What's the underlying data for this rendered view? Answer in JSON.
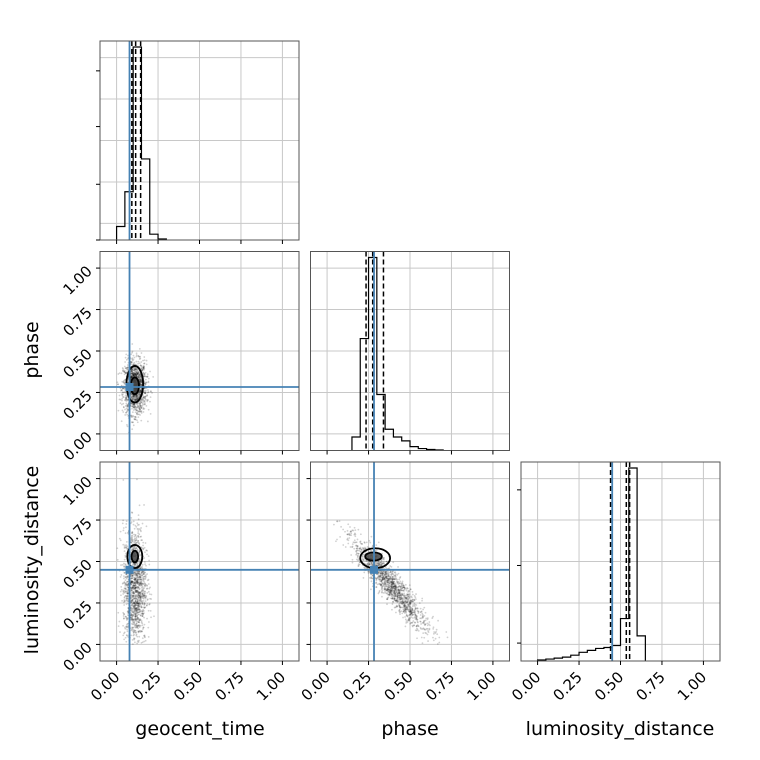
{
  "chart_data": {
    "type": "corner",
    "parameters": [
      "geocent_time",
      "phase",
      "luminosity_distance"
    ],
    "axis_range": [
      -0.1,
      1.1
    ],
    "tick_values": [
      0.0,
      0.25,
      0.5,
      0.75,
      1.0
    ],
    "tick_labels": [
      "0.00",
      "0.25",
      "0.50",
      "0.75",
      "1.00"
    ],
    "xlabels": [
      "geocent_time",
      "phase",
      "luminosity_distance"
    ],
    "ylabels": [
      "",
      "phase",
      "luminosity_distance"
    ],
    "grid": true,
    "truth_color": "#4682b4",
    "truths": {
      "geocent_time": 0.078,
      "phase": 0.283,
      "luminosity_distance": 0.45
    },
    "histograms": [
      {
        "parameter": "geocent_time",
        "bin_edges": [
          0.0,
          0.05,
          0.1,
          0.15,
          0.2,
          0.25,
          0.3
        ],
        "counts": [
          0.07,
          0.25,
          1.0,
          0.42,
          0.03,
          0.005
        ],
        "quantiles": [
          0.092,
          0.115,
          0.145
        ]
      },
      {
        "parameter": "phase",
        "bin_edges": [
          0.15,
          0.2,
          0.25,
          0.3,
          0.35,
          0.4,
          0.45,
          0.5,
          0.55,
          0.6,
          0.65,
          0.7
        ],
        "counts": [
          0.07,
          0.58,
          1.0,
          0.29,
          0.11,
          0.07,
          0.05,
          0.02,
          0.01,
          0.005,
          0.003
        ],
        "quantiles": [
          0.235,
          0.275,
          0.34
        ]
      },
      {
        "parameter": "luminosity_distance",
        "bin_edges": [
          0.0,
          0.05,
          0.1,
          0.15,
          0.2,
          0.25,
          0.3,
          0.35,
          0.4,
          0.45,
          0.5,
          0.55,
          0.6,
          0.65
        ],
        "counts": [
          0.005,
          0.01,
          0.015,
          0.02,
          0.03,
          0.045,
          0.055,
          0.065,
          0.07,
          0.08,
          0.22,
          1.0,
          0.13
        ],
        "quantiles": [
          0.44,
          0.535,
          0.555
        ]
      }
    ],
    "scatter_panels": [
      {
        "x": "geocent_time",
        "y": "phase",
        "cloud_center": [
          0.11,
          0.28
        ],
        "cloud_spread": [
          0.035,
          0.08
        ],
        "contour_levels": [
          {
            "center": [
              0.11,
              0.3
            ],
            "radius": [
              0.05,
              0.11
            ]
          },
          {
            "center": [
              0.11,
              0.29
            ],
            "radius": [
              0.025,
              0.05
            ]
          }
        ]
      },
      {
        "x": "geocent_time",
        "y": "luminosity_distance",
        "cloud_center": [
          0.11,
          0.35
        ],
        "cloud_spread": [
          0.035,
          0.18
        ],
        "contour_levels": [
          {
            "center": [
              0.11,
              0.53
            ],
            "radius": [
              0.045,
              0.07
            ]
          },
          {
            "center": [
              0.11,
              0.53
            ],
            "radius": [
              0.02,
              0.035
            ]
          }
        ]
      },
      {
        "x": "phase",
        "y": "luminosity_distance",
        "cloud_center": [
          0.38,
          0.36
        ],
        "cloud_spread": [
          0.11,
          0.13
        ],
        "contour_levels": [
          {
            "center": [
              0.29,
              0.52
            ],
            "radius": [
              0.09,
              0.06
            ]
          },
          {
            "center": [
              0.28,
              0.53
            ],
            "radius": [
              0.05,
              0.025
            ]
          }
        ]
      }
    ]
  }
}
